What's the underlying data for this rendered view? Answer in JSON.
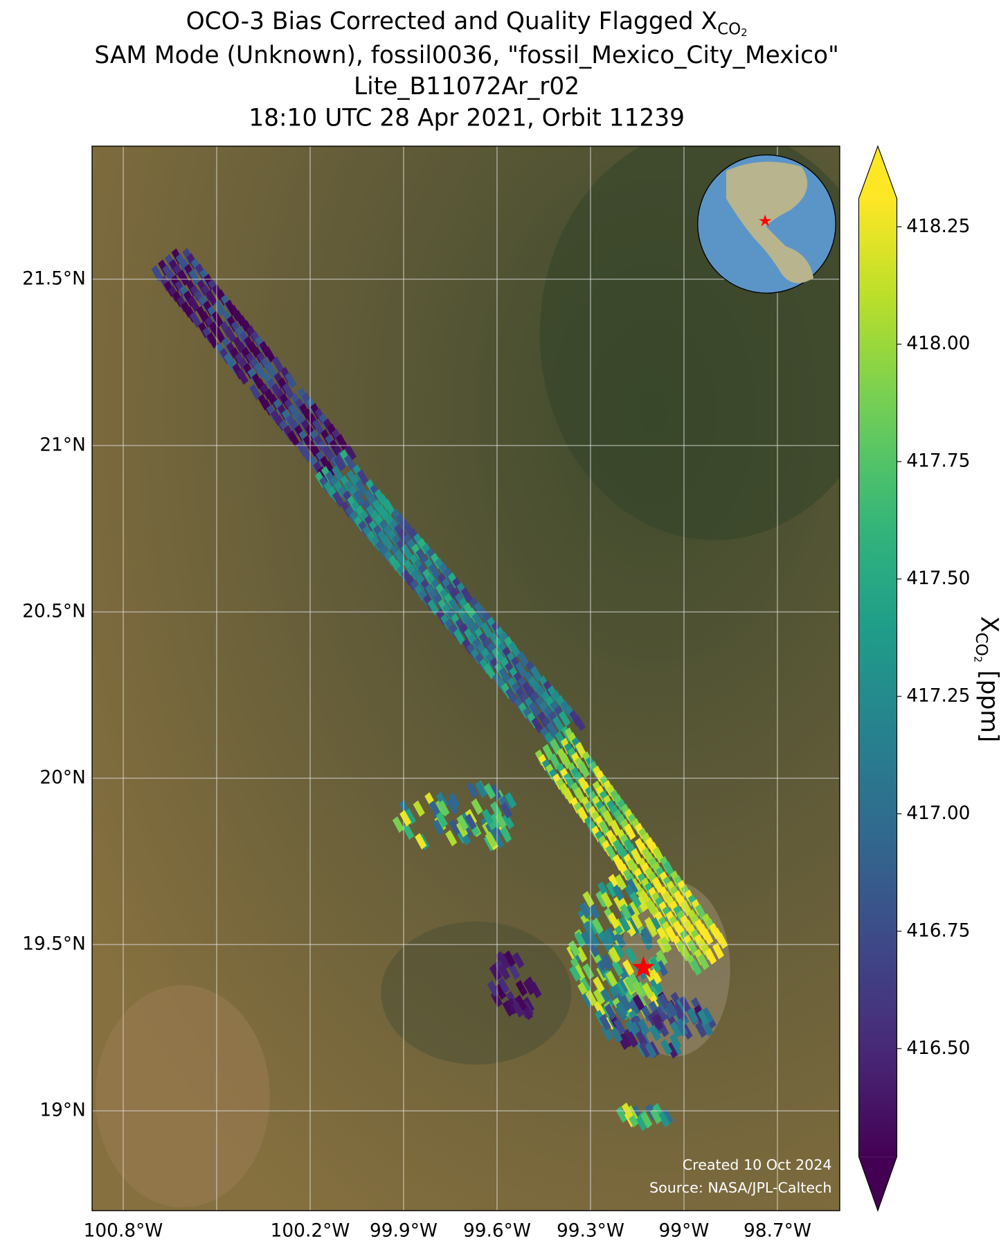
{
  "chart_data": {
    "type": "map",
    "title": {
      "text": "OCO-3 Bias Corrected and Quality Flagged X",
      "subscript": "CO",
      "subsubscript": "2"
    },
    "title_lines": [
      "SAM Mode (Unknown), fossil0036, \"fossil_Mexico_City_Mexico\"",
      "Lite_B11072Ar_r02",
      "18:10 UTC 28 Apr 2021, Orbit 11239"
    ],
    "xlim": [
      -100.9,
      -98.5
    ],
    "xticks": [
      {
        "value": -100.8,
        "label": "100.8°W"
      },
      {
        "value": -100.5,
        "label": null
      },
      {
        "value": -100.2,
        "label": "100.2°W"
      },
      {
        "value": -99.9,
        "label": "99.9°W"
      },
      {
        "value": -99.6,
        "label": "99.6°W"
      },
      {
        "value": -99.3,
        "label": "99.3°W"
      },
      {
        "value": -99.0,
        "label": "99°W"
      },
      {
        "value": -98.7,
        "label": "98.7°W"
      }
    ],
    "ylim": [
      18.7,
      21.9
    ],
    "yticks": [
      {
        "value": 19.0,
        "label": "19°N"
      },
      {
        "value": 19.5,
        "label": "19.5°N"
      },
      {
        "value": 20.0,
        "label": "20°N"
      },
      {
        "value": 20.5,
        "label": "20.5°N"
      },
      {
        "value": 21.0,
        "label": "21°N"
      },
      {
        "value": 21.5,
        "label": "21.5°N"
      }
    ],
    "grid": true,
    "colorbar": {
      "label": {
        "text": "X",
        "subscript": "CO",
        "subsubscript": "2",
        "units": " [ppm]"
      },
      "clim": [
        416.27,
        418.31
      ],
      "colormap": "viridis",
      "extend": "both",
      "ticks": [
        {
          "value": 416.5,
          "label": "416.50"
        },
        416.75,
        {
          "value": 417.0,
          "label": "417.00"
        },
        417.25,
        {
          "value": 417.5,
          "label": "417.50"
        },
        417.75,
        {
          "value": 418.0,
          "label": "418.00"
        },
        418.25
      ]
    },
    "site": {
      "lon": -99.13,
      "lat": 19.43,
      "color": "#ff0000"
    },
    "credits": [
      "Created 10 Oct 2024",
      "Source: NASA/JPL-Caltech"
    ]
  }
}
